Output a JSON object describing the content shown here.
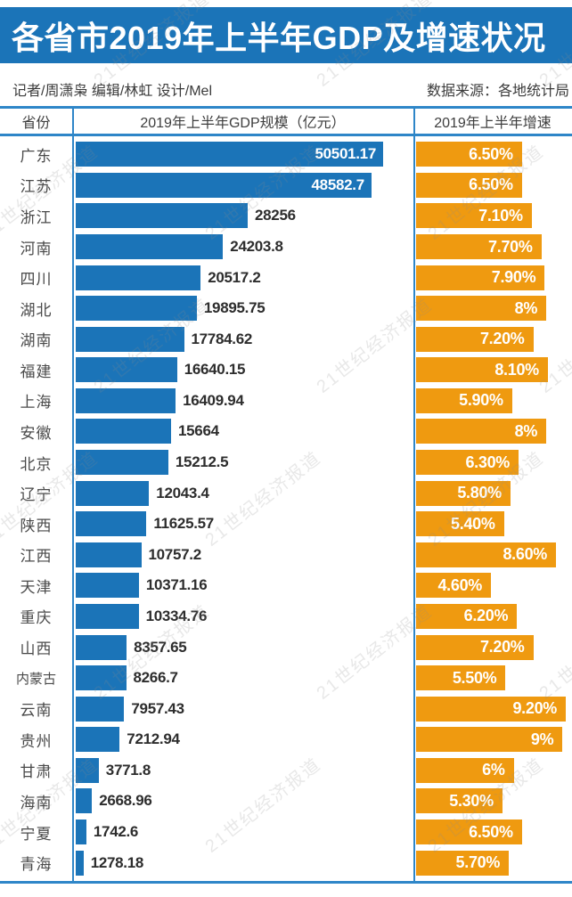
{
  "title": "各省市2019年上半年GDP及增速状况",
  "byline": "记者/周潇枭  编辑/林虹  设计/Mel",
  "source": "数据来源：各地统计局",
  "watermark": "21世纪经济报道",
  "columns": {
    "province": "省份",
    "gdp": "2019年上半年GDP规模（亿元）",
    "growth": "2019年上半年增速"
  },
  "colors": {
    "title_band_blue": "#1B74B8",
    "bar_blue": "#1B74B8",
    "bar_orange": "#EF9A10",
    "rule_blue": "#2E86C8"
  },
  "chart_data": {
    "type": "bar",
    "orientation": "horizontal",
    "title": "各省市2019年上半年GDP及增速状况",
    "categories": [
      "广东",
      "江苏",
      "浙江",
      "河南",
      "四川",
      "湖北",
      "湖南",
      "福建",
      "上海",
      "安徽",
      "北京",
      "辽宁",
      "陕西",
      "江西",
      "天津",
      "重庆",
      "山西",
      "内蒙古",
      "云南",
      "贵州",
      "甘肃",
      "海南",
      "宁夏",
      "青海"
    ],
    "series": [
      {
        "name": "2019年上半年GDP规模（亿元）",
        "color": "#1B74B8",
        "axis_max": 50501.17,
        "values": [
          50501.17,
          48582.7,
          28256,
          24203.8,
          20517.2,
          19895.75,
          17784.62,
          16640.15,
          16409.94,
          15664,
          15212.5,
          12043.4,
          11625.57,
          10757.2,
          10371.16,
          10334.76,
          8357.65,
          8266.7,
          7957.43,
          7212.94,
          3771.8,
          2668.96,
          1742.6,
          1278.18
        ],
        "labels": [
          "50501.17",
          "48582.7",
          "28256",
          "24203.8",
          "20517.2",
          "19895.75",
          "17784.62",
          "16640.15",
          "16409.94",
          "15664",
          "15212.5",
          "12043.4",
          "11625.57",
          "10757.2",
          "10371.16",
          "10334.76",
          "8357.65",
          "8266.7",
          "7957.43",
          "7212.94",
          "3771.8",
          "2668.96",
          "1742.6",
          "1278.18"
        ]
      },
      {
        "name": "2019年上半年增速",
        "color": "#EF9A10",
        "axis_max": 9.2,
        "values": [
          6.5,
          6.5,
          7.1,
          7.7,
          7.9,
          8,
          7.2,
          8.1,
          5.9,
          8,
          6.3,
          5.8,
          5.4,
          8.6,
          4.6,
          6.2,
          7.2,
          5.5,
          9.2,
          9,
          6,
          5.3,
          6.5,
          5.7
        ],
        "labels": [
          "6.50%",
          "6.50%",
          "7.10%",
          "7.70%",
          "7.90%",
          "8%",
          "7.20%",
          "8.10%",
          "5.90%",
          "8%",
          "6.30%",
          "5.80%",
          "5.40%",
          "8.60%",
          "4.60%",
          "6.20%",
          "7.20%",
          "5.50%",
          "9.20%",
          "9%",
          "6%",
          "5.30%",
          "6.50%",
          "5.70%"
        ]
      }
    ],
    "legend": "none",
    "grid": false
  }
}
